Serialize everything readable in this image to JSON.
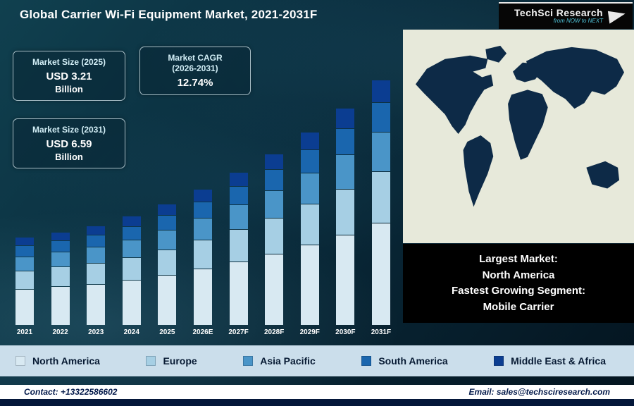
{
  "header": {
    "title": "Global Carrier Wi-Fi Equipment Market, 2021-2031F",
    "logo": {
      "name": "TechSci Research",
      "tagline": "from NOW to NEXT"
    }
  },
  "stats": [
    {
      "label": "Market Size (2025)",
      "value": "USD 3.21",
      "unit": "Billion"
    },
    {
      "label": "Market CAGR",
      "sub": "(2026-2031)",
      "value": "12.74%"
    },
    {
      "label": "Market Size (2031)",
      "value": "USD 6.59",
      "unit": "Billion"
    }
  ],
  "chart_data": {
    "type": "bar",
    "stacked": true,
    "title": "Global Carrier Wi-Fi Equipment Market, 2021-2031F",
    "units": "USD Billion",
    "categories": [
      "2021",
      "2022",
      "2023",
      "2024",
      "2025",
      "2026E",
      "2027F",
      "2028F",
      "2029F",
      "2030F",
      "2031F"
    ],
    "totals": [
      2.3,
      2.45,
      2.62,
      2.88,
      3.21,
      3.62,
      4.08,
      4.6,
      5.18,
      5.84,
      6.59
    ],
    "series": [
      {
        "name": "North America",
        "color": "#d8e9f2",
        "values": [
          0.97,
          1.03,
          1.1,
          1.21,
          1.35,
          1.52,
          1.71,
          1.93,
          2.18,
          2.45,
          2.77
        ]
      },
      {
        "name": "Europe",
        "color": "#a6cfe4",
        "values": [
          0.48,
          0.51,
          0.55,
          0.6,
          0.67,
          0.76,
          0.86,
          0.97,
          1.09,
          1.23,
          1.38
        ]
      },
      {
        "name": "Asia Pacific",
        "color": "#4a95c8",
        "values": [
          0.37,
          0.39,
          0.42,
          0.46,
          0.51,
          0.58,
          0.65,
          0.74,
          0.83,
          0.93,
          1.05
        ]
      },
      {
        "name": "South America",
        "color": "#1a66ae",
        "values": [
          0.28,
          0.29,
          0.31,
          0.35,
          0.39,
          0.43,
          0.49,
          0.55,
          0.62,
          0.7,
          0.79
        ]
      },
      {
        "name": "Middle East & Africa",
        "color": "#0b3d91",
        "values": [
          0.21,
          0.22,
          0.24,
          0.26,
          0.29,
          0.33,
          0.37,
          0.41,
          0.47,
          0.53,
          0.59
        ]
      }
    ],
    "ylim": [
      0,
      7
    ],
    "legend_position": "bottom",
    "grid": false
  },
  "highlight_box": {
    "lines": [
      "Largest Market:",
      "North America",
      "Fastest Growing Segment:",
      "Mobile Carrier"
    ]
  },
  "footer": {
    "contact": "Contact: +13322586602",
    "email": "Email: sales@techsciresearch.com"
  },
  "colors": {
    "background_dark": "#0a2d3e",
    "legend_strip": "#cbdeeb",
    "highlight_bg": "#000000",
    "footer_bar": "#04173a"
  }
}
